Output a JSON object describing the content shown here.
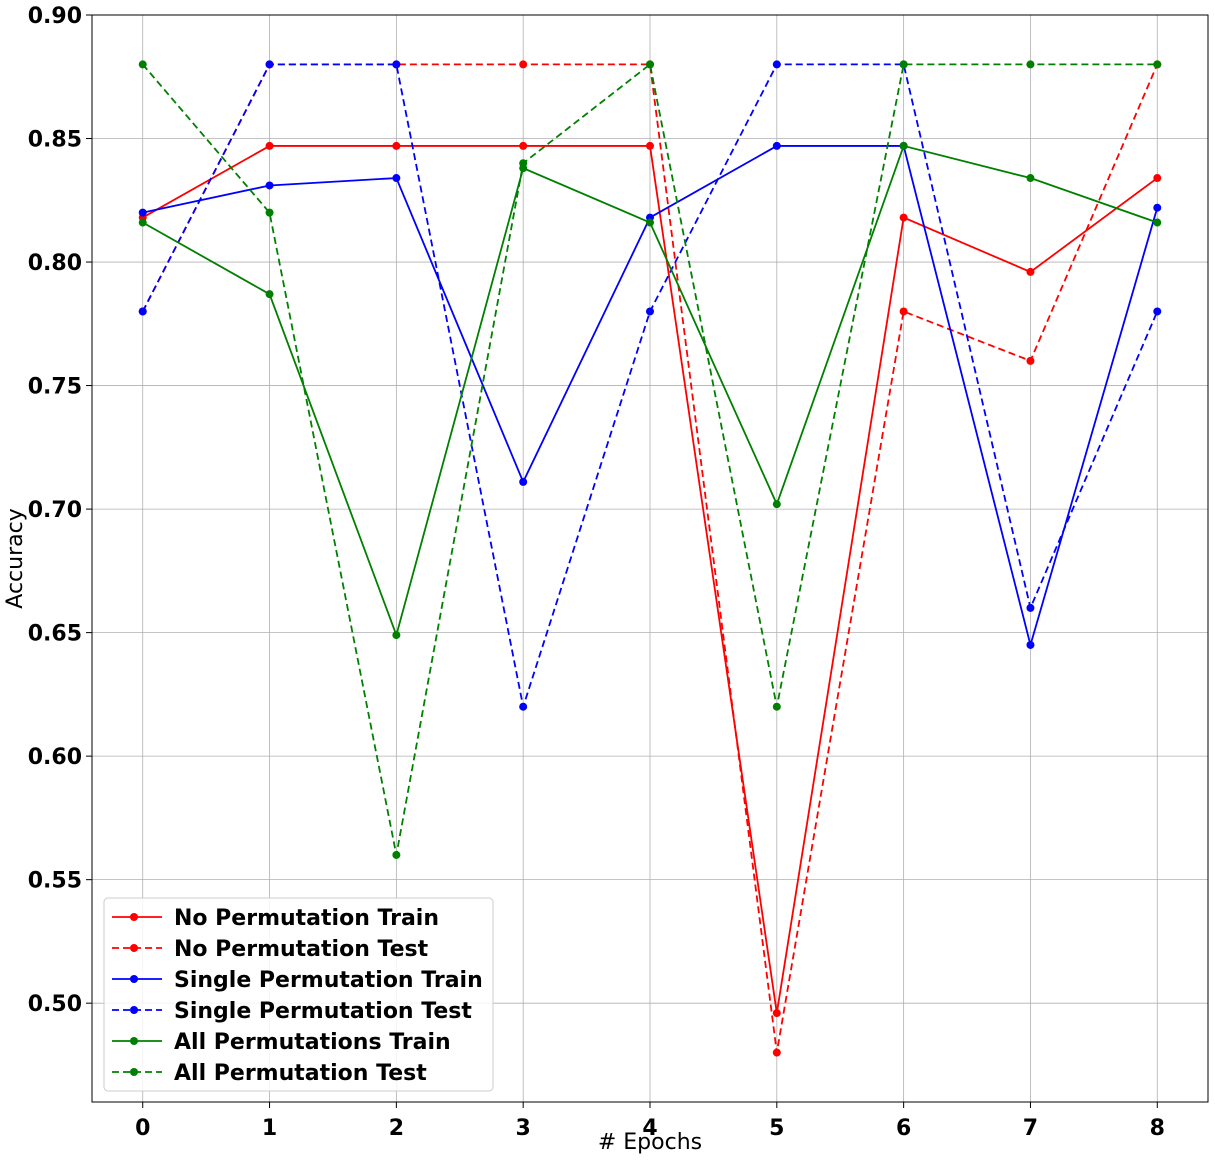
{
  "chart_data": {
    "type": "line",
    "xlabel": "# Epochs",
    "ylabel": "Accuracy",
    "x": [
      0,
      1,
      2,
      3,
      4,
      5,
      6,
      7,
      8
    ],
    "xlim": [
      -0.4,
      8.4
    ],
    "ylim": [
      0.46,
      0.9
    ],
    "yticks": [
      "0.50",
      "0.55",
      "0.60",
      "0.65",
      "0.70",
      "0.75",
      "0.80",
      "0.85",
      "0.90"
    ],
    "ytick_values": [
      0.5,
      0.55,
      0.6,
      0.65,
      0.7,
      0.75,
      0.8,
      0.85,
      0.9
    ],
    "xticks": [
      "0",
      "1",
      "2",
      "3",
      "4",
      "5",
      "6",
      "7",
      "8"
    ],
    "grid": true,
    "legend_position": "bottom-left",
    "series": [
      {
        "name": "No Permutation Train",
        "color": "#ff0000",
        "dash": "solid",
        "values": [
          0.818,
          0.847,
          0.847,
          0.847,
          0.847,
          0.496,
          0.818,
          0.796,
          0.834
        ]
      },
      {
        "name": "No Permutation Test",
        "color": "#ff0000",
        "dash": "dashed",
        "values": [
          0.78,
          0.88,
          0.88,
          0.88,
          0.88,
          0.48,
          0.78,
          0.76,
          0.88
        ]
      },
      {
        "name": "Single Permutation Train",
        "color": "#0000ff",
        "dash": "solid",
        "values": [
          0.82,
          0.831,
          0.834,
          0.711,
          0.818,
          0.847,
          0.847,
          0.645,
          0.822
        ]
      },
      {
        "name": "Single Permutation Test",
        "color": "#0000ff",
        "dash": "dashed",
        "values": [
          0.78,
          0.88,
          0.88,
          0.62,
          0.78,
          0.88,
          0.88,
          0.66,
          0.78
        ]
      },
      {
        "name": "All Permutations Train",
        "color": "#008000",
        "dash": "solid",
        "values": [
          0.816,
          0.787,
          0.649,
          0.838,
          0.816,
          0.702,
          0.847,
          0.834,
          0.816
        ]
      },
      {
        "name": "All Permutation Test",
        "color": "#008000",
        "dash": "dashed",
        "values": [
          0.88,
          0.82,
          0.56,
          0.84,
          0.88,
          0.62,
          0.88,
          0.88,
          0.88
        ]
      }
    ]
  }
}
